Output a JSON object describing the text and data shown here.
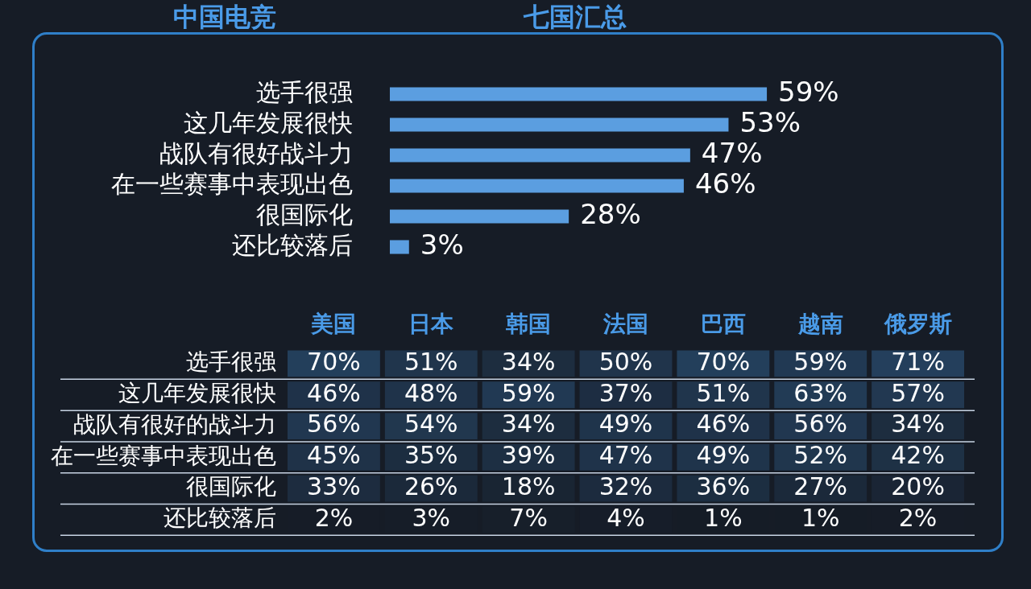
{
  "chart_data": [
    {
      "type": "bar",
      "orientation": "horizontal",
      "title": "中国电竞",
      "subtitle": "七国汇总",
      "categories": [
        "选手很强",
        "这几年发展很快",
        "战队有很好战斗力",
        "在一些赛事中表现出色",
        "很国际化",
        "还比较落后"
      ],
      "values": [
        59,
        53,
        47,
        46,
        28,
        3
      ],
      "color": "#5b9ee0",
      "value_labels": [
        "59%",
        "53%",
        "47%",
        "46%",
        "28%",
        "3%"
      ]
    },
    {
      "type": "heatmap",
      "categories": [
        "美国",
        "日本",
        "韩国",
        "法国",
        "巴西",
        "越南",
        "俄罗斯"
      ],
      "y_categories": [
        "选手很强",
        "这几年发展很快",
        "战队有很好的战斗力",
        "在一些赛事中表现出色",
        "很国际化",
        "还比较落后"
      ],
      "cells": [
        [
          70,
          51,
          34,
          50,
          70,
          59,
          71
        ],
        [
          46,
          48,
          59,
          37,
          51,
          63,
          57
        ],
        [
          56,
          54,
          34,
          49,
          46,
          56,
          34
        ],
        [
          45,
          35,
          39,
          47,
          49,
          52,
          42
        ],
        [
          33,
          26,
          18,
          32,
          36,
          27,
          20
        ],
        [
          2,
          3,
          7,
          4,
          1,
          1,
          2
        ]
      ],
      "cell_labels": [
        [
          "70%",
          "51%",
          "34%",
          "50%",
          "70%",
          "59%",
          "71%"
        ],
        [
          "46%",
          "48%",
          "59%",
          "37%",
          "51%",
          "63%",
          "57%"
        ],
        [
          "56%",
          "54%",
          "34%",
          "49%",
          "46%",
          "56%",
          "34%"
        ],
        [
          "45%",
          "35%",
          "39%",
          "47%",
          "49%",
          "52%",
          "42%"
        ],
        [
          "33%",
          "26%",
          "18%",
          "32%",
          "36%",
          "27%",
          "20%"
        ],
        [
          "2%",
          "3%",
          "7%",
          "4%",
          "1%",
          "1%",
          "2%"
        ]
      ]
    }
  ]
}
